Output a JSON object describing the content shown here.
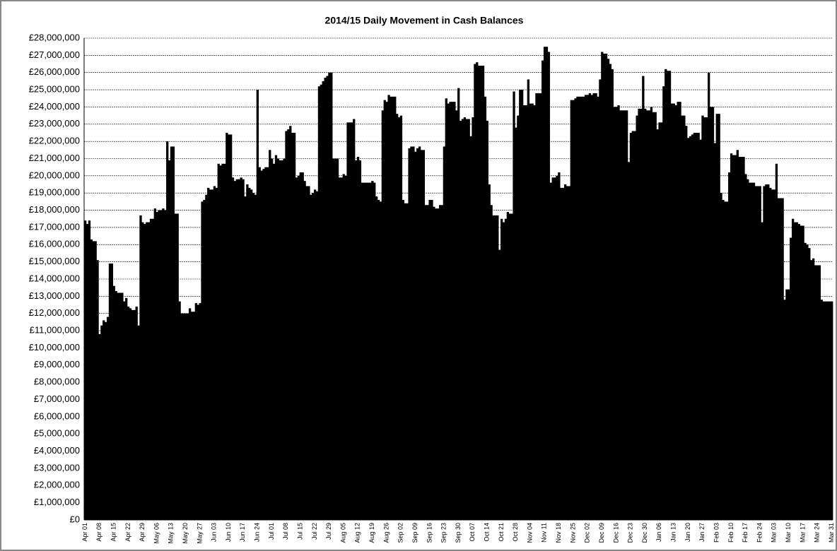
{
  "chart_data": {
    "type": "bar",
    "title": "2014/15 Daily Movement in Cash Balances",
    "color": "#000000",
    "grid": true,
    "categories": [
      "Apr 01",
      null,
      null,
      null,
      null,
      null,
      null,
      "Apr 08",
      null,
      null,
      null,
      null,
      null,
      null,
      "Apr 15",
      null,
      null,
      null,
      null,
      null,
      null,
      "Apr 22",
      null,
      null,
      null,
      null,
      null,
      null,
      "Apr 29",
      null,
      null,
      null,
      null,
      null,
      null,
      "May 06",
      null,
      null,
      null,
      null,
      null,
      null,
      "May 13",
      null,
      null,
      null,
      null,
      null,
      null,
      "May 20",
      null,
      null,
      null,
      null,
      null,
      null,
      "May 27",
      null,
      null,
      null,
      null,
      null,
      null,
      "Jun 03",
      null,
      null,
      null,
      null,
      null,
      null,
      "Jun 10",
      null,
      null,
      null,
      null,
      null,
      null,
      "Jun 17",
      null,
      null,
      null,
      null,
      null,
      null,
      "Jun 24",
      null,
      null,
      null,
      null,
      null,
      null,
      "Jul 01",
      null,
      null,
      null,
      null,
      null,
      null,
      "Jul 08",
      null,
      null,
      null,
      null,
      null,
      null,
      "Jul 15",
      null,
      null,
      null,
      null,
      null,
      null,
      "Jul 22",
      null,
      null,
      null,
      null,
      null,
      null,
      "Jul 29",
      null,
      null,
      null,
      null,
      null,
      null,
      "Aug 05",
      null,
      null,
      null,
      null,
      null,
      null,
      "Aug 12",
      null,
      null,
      null,
      null,
      null,
      null,
      "Aug 19",
      null,
      null,
      null,
      null,
      null,
      null,
      "Aug 26",
      null,
      null,
      null,
      null,
      null,
      null,
      "Sep 02",
      null,
      null,
      null,
      null,
      null,
      null,
      "Sep 09",
      null,
      null,
      null,
      null,
      null,
      null,
      "Sep 16",
      null,
      null,
      null,
      null,
      null,
      null,
      "Sep 23",
      null,
      null,
      null,
      null,
      null,
      null,
      "Sep 30",
      null,
      null,
      null,
      null,
      null,
      null,
      "Oct 07",
      null,
      null,
      null,
      null,
      null,
      null,
      "Oct 14",
      null,
      null,
      null,
      null,
      null,
      null,
      "Oct 21",
      null,
      null,
      null,
      null,
      null,
      null,
      "Oct 28",
      null,
      null,
      null,
      null,
      null,
      null,
      "Nov 04",
      null,
      null,
      null,
      null,
      null,
      null,
      "Nov 11",
      null,
      null,
      null,
      null,
      null,
      null,
      "Nov 18",
      null,
      null,
      null,
      null,
      null,
      null,
      "Nov 25",
      null,
      null,
      null,
      null,
      null,
      null,
      "Dec 02",
      null,
      null,
      null,
      null,
      null,
      null,
      "Dec 09",
      null,
      null,
      null,
      null,
      null,
      null,
      "Dec 16",
      null,
      null,
      null,
      null,
      null,
      null,
      "Dec 23",
      null,
      null,
      null,
      null,
      null,
      null,
      "Dec 30",
      null,
      null,
      null,
      null,
      null,
      null,
      "Jan 06",
      null,
      null,
      null,
      null,
      null,
      null,
      "Jan 13",
      null,
      null,
      null,
      null,
      null,
      null,
      "Jan 20",
      null,
      null,
      null,
      null,
      null,
      null,
      "Jan 27",
      null,
      null,
      null,
      null,
      null,
      null,
      "Feb 03",
      null,
      null,
      null,
      null,
      null,
      null,
      "Feb 10",
      null,
      null,
      null,
      null,
      null,
      null,
      "Feb 17",
      null,
      null,
      null,
      null,
      null,
      null,
      "Feb 24",
      null,
      null,
      null,
      null,
      null,
      null,
      "Mar 03",
      null,
      null,
      null,
      null,
      null,
      null,
      "Mar 10",
      null,
      null,
      null,
      null,
      null,
      null,
      "Mar 17",
      null,
      null,
      null,
      null,
      null,
      null,
      "Mar 24",
      null,
      null,
      null,
      null,
      null,
      null,
      "Mar 31"
    ],
    "values": [
      17400000,
      17200000,
      17400000,
      16300000,
      16200000,
      16200000,
      15100000,
      10800000,
      11300000,
      11600000,
      11500000,
      11800000,
      14900000,
      14900000,
      13600000,
      13300000,
      13200000,
      13200000,
      13200000,
      12700000,
      12900000,
      12400000,
      12300000,
      12200000,
      12200000,
      12400000,
      11300000,
      17700000,
      17300000,
      17200000,
      17300000,
      17300000,
      17500000,
      17500000,
      18100000,
      17900000,
      18000000,
      18000000,
      18100000,
      18000000,
      22000000,
      20900000,
      21700000,
      21700000,
      17800000,
      17800000,
      12700000,
      12000000,
      12000000,
      12000000,
      12000000,
      12300000,
      12100000,
      12100000,
      12600000,
      12500000,
      12600000,
      18500000,
      18600000,
      18900000,
      19300000,
      19200000,
      19200000,
      19400000,
      19300000,
      20700000,
      20600000,
      20700000,
      20700000,
      22500000,
      22400000,
      22400000,
      19900000,
      19700000,
      19800000,
      19800000,
      19900000,
      19800000,
      18800000,
      19500000,
      19300000,
      19200000,
      19000000,
      18900000,
      25000000,
      20500000,
      20300000,
      20400000,
      20500000,
      20500000,
      21500000,
      21000000,
      20700000,
      21200000,
      21000000,
      20900000,
      20900000,
      21000000,
      22600000,
      22700000,
      22900000,
      22500000,
      22500000,
      19900000,
      20000000,
      20200000,
      20200000,
      19700000,
      19400000,
      19400000,
      18900000,
      19000000,
      19200000,
      19100000,
      25200000,
      25300000,
      25500000,
      25700000,
      25800000,
      26000000,
      26000000,
      21000000,
      21000000,
      21000000,
      19900000,
      19900000,
      20100000,
      20000000,
      23100000,
      23100000,
      23100000,
      23300000,
      20900000,
      21100000,
      20900000,
      19600000,
      19600000,
      19600000,
      19600000,
      19600000,
      19700000,
      19600000,
      18800000,
      18600000,
      18500000,
      23800000,
      24400000,
      24300000,
      24700000,
      24600000,
      24600000,
      24600000,
      23600000,
      23400000,
      23500000,
      18600000,
      18400000,
      18400000,
      21600000,
      21700000,
      21700000,
      21400000,
      21600000,
      21700000,
      21500000,
      21500000,
      18300000,
      18300000,
      18600000,
      18600000,
      18200000,
      18100000,
      18100000,
      18300000,
      18300000,
      21700000,
      24500000,
      24200000,
      24300000,
      24300000,
      24300000,
      23800000,
      25100000,
      23200000,
      23300000,
      23400000,
      23300000,
      23300000,
      22300000,
      23400000,
      26500000,
      26600000,
      26400000,
      26400000,
      26400000,
      24600000,
      23200000,
      19500000,
      18300000,
      17700000,
      17700000,
      17700000,
      15700000,
      17500000,
      17300000,
      17500000,
      17900000,
      17800000,
      17800000,
      24900000,
      22800000,
      23500000,
      25000000,
      25000000,
      24100000,
      24100000,
      25600000,
      24200000,
      24200000,
      24100000,
      24800000,
      24800000,
      24800000,
      26700000,
      27500000,
      27500000,
      27200000,
      19600000,
      19900000,
      19900000,
      20000000,
      20200000,
      19300000,
      19300000,
      19500000,
      19400000,
      19400000,
      24400000,
      24400000,
      24500000,
      24600000,
      24600000,
      24600000,
      24600000,
      24700000,
      24700000,
      24800000,
      24700000,
      24800000,
      24800000,
      24600000,
      25600000,
      27200000,
      27100000,
      27100000,
      26800000,
      26500000,
      26200000,
      24000000,
      24000000,
      24100000,
      23800000,
      23800000,
      23800000,
      23800000,
      20800000,
      22500000,
      22600000,
      22600000,
      23500000,
      23900000,
      23900000,
      25800000,
      23900000,
      23800000,
      23800000,
      24000000,
      23700000,
      23700000,
      22700000,
      23100000,
      23100000,
      25200000,
      26200000,
      26100000,
      26100000,
      24200000,
      24200000,
      24100000,
      24300000,
      24300000,
      23500000,
      23500000,
      22900000,
      22200000,
      22300000,
      22400000,
      22500000,
      22500000,
      22500000,
      22100000,
      23500000,
      23400000,
      23400000,
      26000000,
      24000000,
      24000000,
      21900000,
      23600000,
      23600000,
      19000000,
      18600000,
      18500000,
      18500000,
      20200000,
      21300000,
      21200000,
      21200000,
      21500000,
      21100000,
      21100000,
      21100000,
      20100000,
      19800000,
      19600000,
      19600000,
      19600000,
      19400000,
      19400000,
      19400000,
      17300000,
      19400000,
      19500000,
      19500000,
      19300000,
      19200000,
      19200000,
      20700000,
      18700000,
      18700000,
      18700000,
      12800000,
      13400000,
      13400000,
      16400000,
      17500000,
      17300000,
      17300000,
      17200000,
      17100000,
      17100000,
      16100000,
      16000000,
      15800000,
      15100000,
      15200000,
      14800000,
      14800000,
      14800000,
      12800000,
      12700000,
      12700000,
      12700000,
      12700000,
      12700000
    ],
    "ylim": [
      0,
      28000000
    ],
    "yticks": [
      {
        "value": 0,
        "label": "£0"
      },
      {
        "value": 1000000,
        "label": "£1,000,000"
      },
      {
        "value": 2000000,
        "label": "£2,000,000"
      },
      {
        "value": 3000000,
        "label": "£3,000,000"
      },
      {
        "value": 4000000,
        "label": "£4,000,000"
      },
      {
        "value": 5000000,
        "label": "£5,000,000"
      },
      {
        "value": 6000000,
        "label": "£6,000,000"
      },
      {
        "value": 7000000,
        "label": "£7,000,000"
      },
      {
        "value": 8000000,
        "label": "£8,000,000"
      },
      {
        "value": 9000000,
        "label": "£9,000,000"
      },
      {
        "value": 10000000,
        "label": "£10,000,000"
      },
      {
        "value": 11000000,
        "label": "£11,000,000"
      },
      {
        "value": 12000000,
        "label": "£12,000,000"
      },
      {
        "value": 13000000,
        "label": "£13,000,000"
      },
      {
        "value": 14000000,
        "label": "£14,000,000"
      },
      {
        "value": 15000000,
        "label": "£15,000,000"
      },
      {
        "value": 16000000,
        "label": "£16,000,000"
      },
      {
        "value": 17000000,
        "label": "£17,000,000"
      },
      {
        "value": 18000000,
        "label": "£18,000,000"
      },
      {
        "value": 19000000,
        "label": "£19,000,000"
      },
      {
        "value": 20000000,
        "label": "£20,000,000"
      },
      {
        "value": 21000000,
        "label": "£21,000,000"
      },
      {
        "value": 22000000,
        "label": "£22,000,000"
      },
      {
        "value": 23000000,
        "label": "£23,000,000"
      },
      {
        "value": 24000000,
        "label": "£24,000,000"
      },
      {
        "value": 25000000,
        "label": "£25,000,000"
      },
      {
        "value": 26000000,
        "label": "£26,000,000"
      },
      {
        "value": 27000000,
        "label": "£27,000,000"
      },
      {
        "value": 28000000,
        "label": "£28,000,000"
      }
    ]
  }
}
